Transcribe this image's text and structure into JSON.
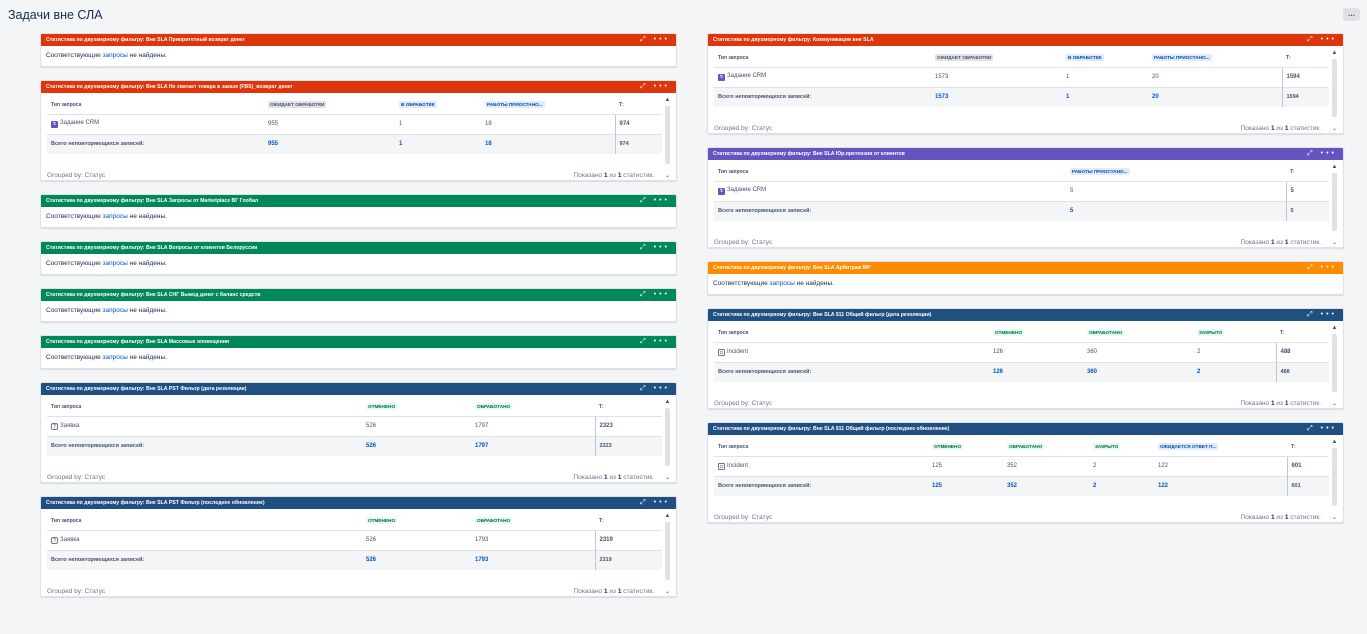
{
  "page": {
    "title": "Задачи вне СЛА",
    "more": "..."
  },
  "common": {
    "prefix": "Статистика по двухмерному фильтру: ",
    "empty_pre": "Соответствующие ",
    "empty_link": "запросы",
    "empty_post": " не найдены.",
    "type_col": "Тип запроса",
    "total_label": "Всего неповторяющихся записей:",
    "grouped": "Grouped by: Статус",
    "shown_pre": "Показано ",
    "shown_one": "1",
    "shown_mid": " из ",
    "shown_post": " статистик.",
    "t_col": "Т:",
    "expand": "⤢",
    "dots": "•••",
    "scroll_up": "▲",
    "scroll_down": "⌄"
  },
  "gadgets": {
    "g1": {
      "title": "Статистика по двухмерному фильтру: Вне SLA Приоритетный возврат денег",
      "color": "#de350b"
    },
    "g2": {
      "title": "Статистика по двухмерному фильтру: Вне SLA Не хватает товара в заказе (FBS)_возврат денег",
      "color": "#de350b",
      "cols": [
        "ОЖИДАЕТ ОБРАБОТКИ",
        "В ОБРАБОТКЕ",
        "РАБОТЫ ПРИОСТАНО..."
      ],
      "row_label": "Задание CRM",
      "row": [
        "955",
        "1",
        "18"
      ],
      "row_total": "974",
      "totals": [
        "955",
        "1",
        "18"
      ],
      "grand": "974"
    },
    "g3": {
      "title": "Статистика по двухмерному фильтру: Вне SLA Запросы от Marketplace ВГ Глобал",
      "color": "#00875a"
    },
    "g4": {
      "title": "Статистика по двухмерному фильтру: Вне SLA Вопросы от клиентов Белоруссии",
      "color": "#00875a"
    },
    "g5": {
      "title": "Статистика по двухмерному фильтру: Вне SLA СНГ Вывод денег с баланс средств",
      "color": "#00875a"
    },
    "g6": {
      "title": "Статистика по двухмерному фильтру: Вне SLA Массовые оповещения",
      "color": "#00875a"
    },
    "g7": {
      "title": "Статистика по двухмерному фильтру: Вне SLA PST Фильтр (дата резолюции)",
      "color": "#205081",
      "cols": [
        "ОТМЕНЕНО",
        "ОБРАБОТАНО"
      ],
      "row_label": "Заявка",
      "row": [
        "526",
        "1797"
      ],
      "row_total": "2323",
      "totals": [
        "526",
        "1797"
      ],
      "grand": "2323"
    },
    "g8": {
      "title": "Статистика по двухмерному фильтру: Вне SLA PST Фильтр (последнее обновление)",
      "color": "#205081",
      "cols": [
        "ОТМЕНЕНО",
        "ОБРАБОТАНО"
      ],
      "row_label": "Заявка",
      "row": [
        "526",
        "1793"
      ],
      "row_total": "2319",
      "totals": [
        "526",
        "1793"
      ],
      "grand": "2319"
    },
    "g9": {
      "title": "Статистика по двухмерному фильтру: Коммуникации вне SLA",
      "color": "#de350b",
      "cols": [
        "ОЖИДАЕТ ОБРАБОТКИ",
        "В ОБРАБОТКЕ",
        "РАБОТЫ ПРИОСТАНО..."
      ],
      "row_label": "Задание CRM",
      "row": [
        "1573",
        "1",
        "20"
      ],
      "row_total": "1594",
      "totals": [
        "1573",
        "1",
        "20"
      ],
      "grand": "1594"
    },
    "g10": {
      "title": "Статистика по двухмерному фильтру: Вне SLA Юр.претензии от клиентов",
      "color": "#6554c0",
      "cols": [
        "РАБОТЫ ПРИОСТАНО..."
      ],
      "row_label": "Задание CRM",
      "row": [
        "5"
      ],
      "row_total": "5",
      "totals": [
        "5"
      ],
      "grand": "5"
    },
    "g11": {
      "title": "Статистика по двухмерному фильтру: Вне SLA Арбитраж МР",
      "color": "#ff8b00"
    },
    "g12": {
      "title": "Статистика по двухмерному фильтру: Вне SLA 911 Общий фильтр (дата резолюции)",
      "color": "#205081",
      "cols": [
        "ОТМЕНЕНО",
        "ОБРАБОТАНО",
        "ЗАКРЫТО"
      ],
      "row_label": "Incident",
      "row": [
        "126",
        "360",
        "2"
      ],
      "row_total": "488",
      "totals": [
        "126",
        "360",
        "2"
      ],
      "grand": "488"
    },
    "g13": {
      "title": "Статистика по двухмерному фильтру: Вне SLA 911 Общий фильтр (последнее обновление)",
      "color": "#205081",
      "cols": [
        "ОТМЕНЕНО",
        "ОБРАБОТАНО",
        "ЗАКРЫТО",
        "ОЖИДАЕТСЯ ОТВЕТ П..."
      ],
      "row_label": "Incident",
      "row": [
        "125",
        "352",
        "2",
        "122"
      ],
      "row_total": "601",
      "totals": [
        "125",
        "352",
        "2",
        "122"
      ],
      "grand": "601"
    }
  }
}
